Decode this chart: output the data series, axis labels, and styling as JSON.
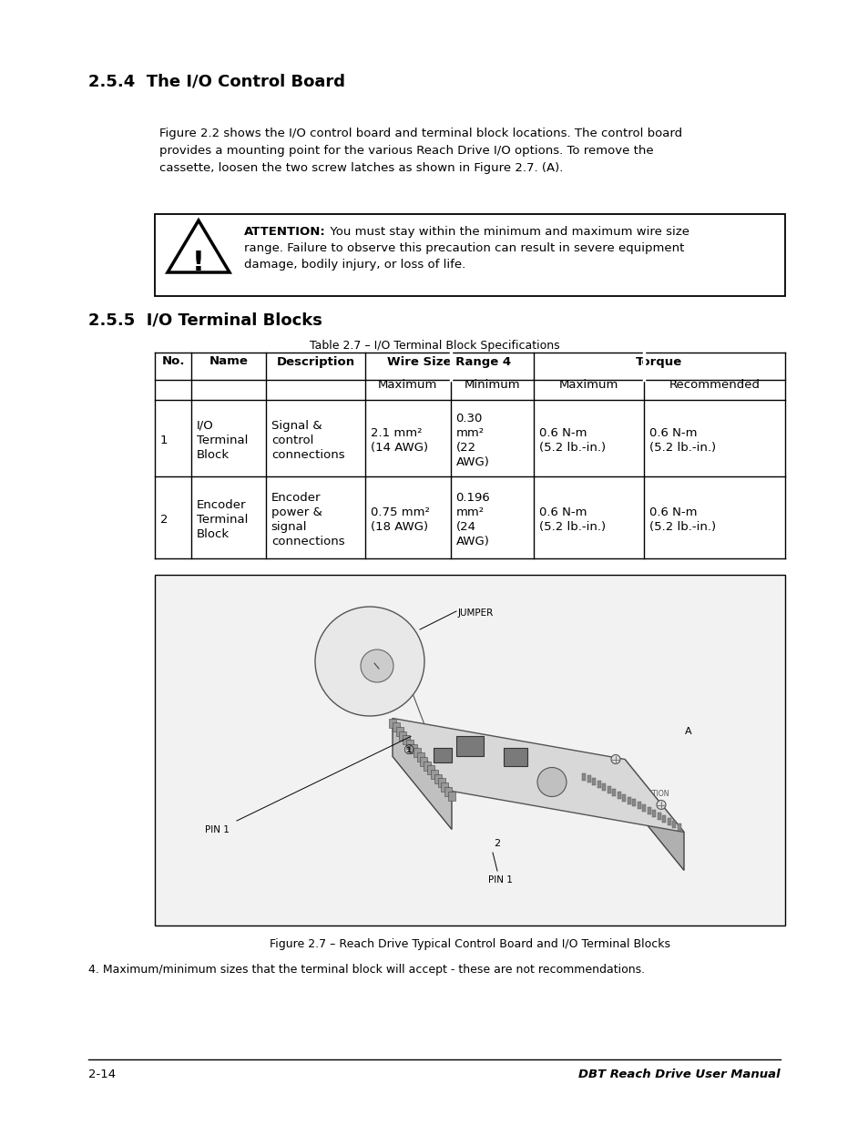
{
  "section_title": "2.5.4  The I/O Control Board",
  "body_text_lines": [
    "Figure 2.2 shows the I/O control board and terminal block locations. The control board",
    "provides a mounting point for the various Reach Drive I/O options. To remove the",
    "cassette, loosen the two screw latches as shown in Figure 2.7. (A)."
  ],
  "attention_bold": "ATTENTION:",
  "attention_line1_rest": "  You must stay within the minimum and maximum wire size",
  "attention_line2": "range. Failure to observe this precaution can result in severe equipment",
  "attention_line3": "damage, bodily injury, or loss of life.",
  "section2_title": "2.5.5  I/O Terminal Blocks",
  "table_caption": "Table 2.7 – I/O Terminal Block Specifications",
  "row1": [
    "1",
    "I/O\nTerminal\nBlock",
    "Signal &\ncontrol\nconnections",
    "2.1 mm²\n(14 AWG)",
    "0.30\nmm²\n(22\nAWG)",
    "0.6 N-m\n(5.2 lb.-in.)",
    "0.6 N-m\n(5.2 lb.-in.)"
  ],
  "row2": [
    "2",
    "Encoder\nTerminal\nBlock",
    "Encoder\npower &\nsignal\nconnections",
    "0.75 mm²\n(18 AWG)",
    "0.196\nmm²\n(24\nAWG)",
    "0.6 N-m\n(5.2 lb.-in.)",
    "0.6 N-m\n(5.2 lb.-in.)"
  ],
  "figure_caption": "Figure 2.7 – Reach Drive Typical Control Board and I/O Terminal Blocks",
  "footnote": "4. Maximum/minimum sizes that the terminal block will accept - these are not recommendations.",
  "page_number": "2-14",
  "manual_title": "DBT Reach Drive User Manual"
}
